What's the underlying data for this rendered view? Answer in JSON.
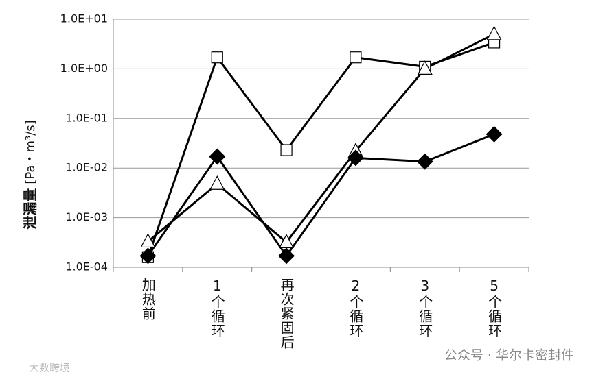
{
  "chart_data": {
    "type": "line",
    "y_label": "泄漏量",
    "y_unit": "[Pa・m³/s]",
    "categories": [
      "加热前",
      "1个循环",
      "再次紧固后",
      "2个循环",
      "3个循环",
      "5个循环"
    ],
    "log_y": true,
    "grid": true,
    "ylim": [
      0.0001,
      10
    ],
    "yticks": [
      {
        "value": 0.0001,
        "label": "1.0E-04"
      },
      {
        "value": 0.001,
        "label": "1.0E-03"
      },
      {
        "value": 0.01,
        "label": "1.0E-02"
      },
      {
        "value": 0.1,
        "label": "1.0E-01"
      },
      {
        "value": 1,
        "label": "1.0E+00"
      },
      {
        "value": 10,
        "label": "1.0E+01"
      }
    ],
    "series": [
      {
        "marker": "square",
        "color": "#000000",
        "values": [
          0.00016,
          1.7,
          0.023,
          1.7,
          1.1,
          3.4
        ]
      },
      {
        "marker": "triangle",
        "color": "#000000",
        "values": [
          0.00033,
          0.0048,
          0.00032,
          0.022,
          1.0,
          5.0
        ]
      },
      {
        "marker": "diamond",
        "color": "#000000",
        "values": [
          0.00017,
          0.017,
          0.00017,
          0.016,
          0.0135,
          0.048
        ]
      }
    ]
  },
  "watermarks": [
    "大数跨境",
    "公众号 · 华尔卡密封件"
  ]
}
